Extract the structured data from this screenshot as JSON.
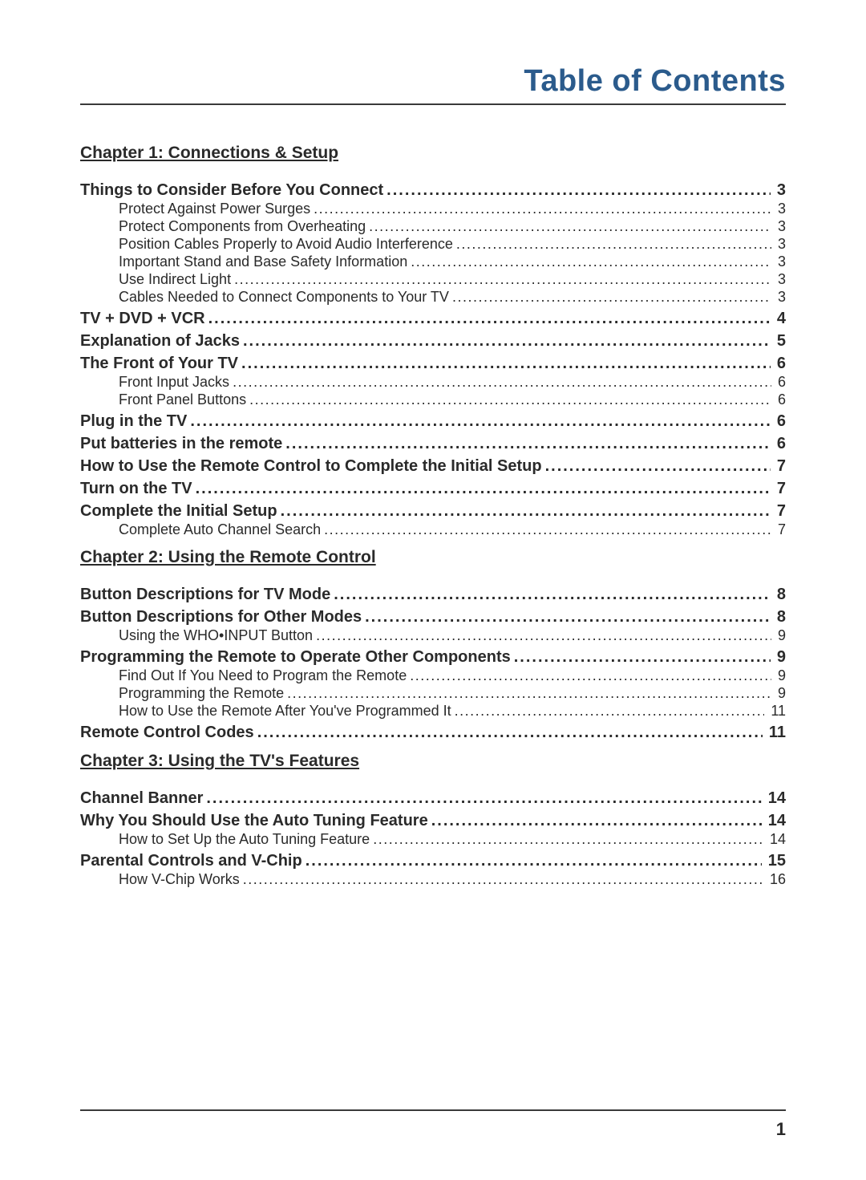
{
  "title": "Table of Contents",
  "page_number": "1",
  "colors": {
    "title_color": "#2b5b8c",
    "text_color": "#2a2a2a",
    "rule_color": "#3a3a3a",
    "background": "#ffffff"
  },
  "typography": {
    "title_fontsize": 38,
    "chapter_fontsize": 21,
    "level1_fontsize": 20,
    "level2_fontsize": 18,
    "font_family": "Verdana"
  },
  "entries": [
    {
      "type": "chapter",
      "label": "Chapter 1: Connections & Setup"
    },
    {
      "type": "l1",
      "label": "Things to Consider Before You Connect",
      "page": "3"
    },
    {
      "type": "l2",
      "label": "Protect Against Power Surges",
      "page": "3"
    },
    {
      "type": "l2",
      "label": "Protect Components from Overheating",
      "page": "3"
    },
    {
      "type": "l2",
      "label": "Position Cables Properly to Avoid Audio Interference",
      "page": "3"
    },
    {
      "type": "l2",
      "label": "Important Stand and Base Safety Information",
      "page": "3"
    },
    {
      "type": "l2",
      "label": "Use Indirect Light",
      "page": "3"
    },
    {
      "type": "l2",
      "label": "Cables Needed to Connect Components to Your TV",
      "page": "3"
    },
    {
      "type": "l1",
      "label": "TV + DVD + VCR",
      "page": "4"
    },
    {
      "type": "l1",
      "label": "Explanation of Jacks",
      "page": "5"
    },
    {
      "type": "l1",
      "label": "The Front of Your TV",
      "page": "6"
    },
    {
      "type": "l2",
      "label": "Front Input Jacks",
      "page": "6"
    },
    {
      "type": "l2",
      "label": "Front Panel Buttons",
      "page": "6"
    },
    {
      "type": "l1",
      "label": "Plug in the TV",
      "page": "6"
    },
    {
      "type": "l1",
      "label": "Put batteries in the remote",
      "page": "6"
    },
    {
      "type": "l1",
      "label": "How to Use the Remote Control to Complete the Initial Setup",
      "page": "7"
    },
    {
      "type": "l1",
      "label": "Turn on the TV",
      "page": "7"
    },
    {
      "type": "l1",
      "label": "Complete the Initial Setup",
      "page": "7"
    },
    {
      "type": "l2",
      "label": "Complete Auto Channel Search",
      "page": "7"
    },
    {
      "type": "chapter",
      "label": "Chapter 2: Using the Remote Control"
    },
    {
      "type": "l1",
      "label": "Button Descriptions for TV Mode",
      "page": "8"
    },
    {
      "type": "l1",
      "label": "Button Descriptions for Other Modes",
      "page": "8"
    },
    {
      "type": "l2",
      "label": "Using the WHO•INPUT Button",
      "page": "9"
    },
    {
      "type": "l1",
      "label": "Programming the Remote to Operate Other Components",
      "page": "9"
    },
    {
      "type": "l2",
      "label": "Find Out If You Need to Program the Remote",
      "page": "9"
    },
    {
      "type": "l2",
      "label": "Programming the Remote",
      "page": "9"
    },
    {
      "type": "l2",
      "label": "How to Use the Remote After You've Programmed It",
      "page": "11"
    },
    {
      "type": "l1",
      "label": "Remote Control Codes",
      "page": "11"
    },
    {
      "type": "chapter",
      "label": "Chapter 3: Using the TV's Features"
    },
    {
      "type": "l1",
      "label": "Channel Banner",
      "page": "14"
    },
    {
      "type": "l1",
      "label": "Why You Should Use the Auto Tuning Feature",
      "page": "14"
    },
    {
      "type": "l2",
      "label": "How to Set Up the Auto Tuning Feature",
      "page": "14"
    },
    {
      "type": "l1",
      "label": "Parental Controls and V-Chip",
      "page": "15"
    },
    {
      "type": "l2",
      "label": "How V-Chip Works",
      "page": "16"
    }
  ]
}
